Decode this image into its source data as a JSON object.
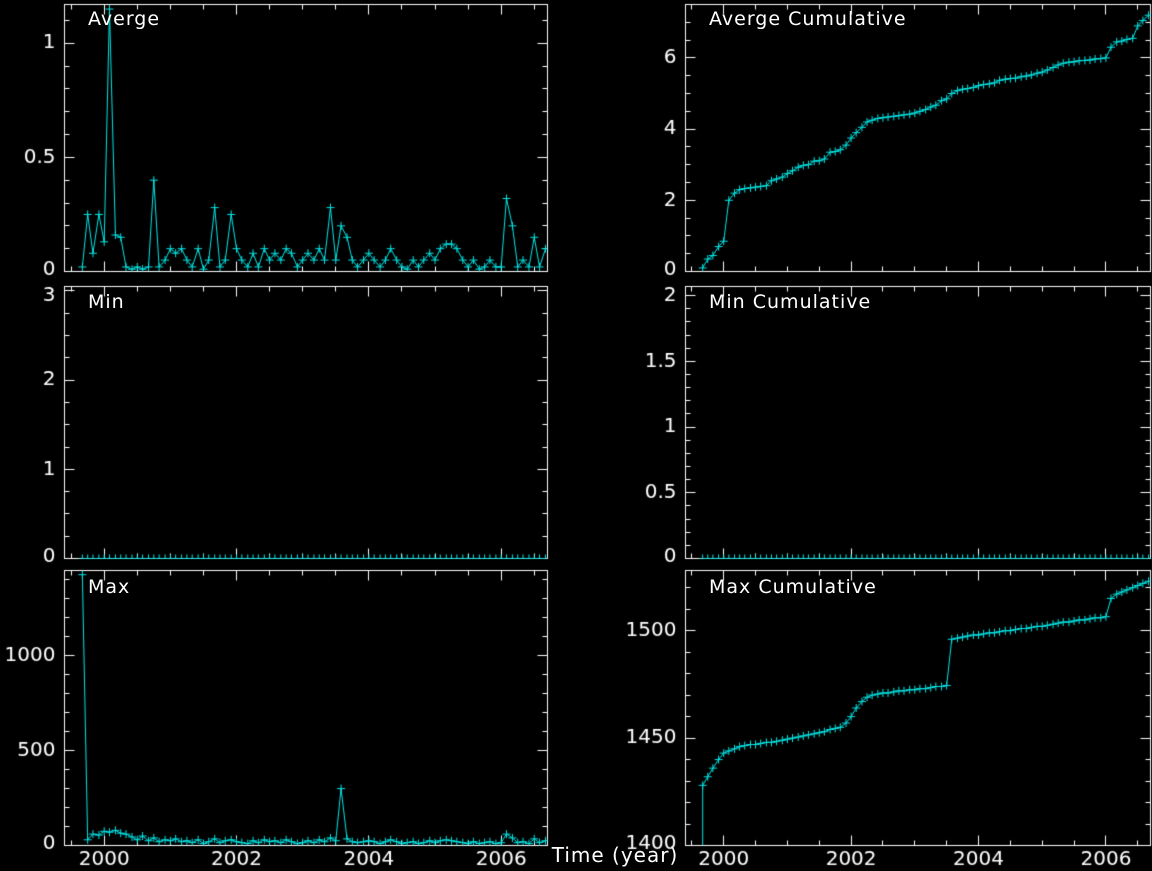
{
  "colors": {
    "background": "#000000",
    "axis": "#ffffff",
    "text": "#ffffff",
    "series": "#00e6e6"
  },
  "xlabel": "Time (year)",
  "chart_data": {
    "type": "line",
    "marker": "plus",
    "xlim": [
      1999.4,
      2006.7
    ],
    "x_ticks": {
      "values": [
        2000,
        2002,
        2004,
        2006
      ],
      "labels": [
        "2000",
        "2002",
        "2004",
        "2006"
      ]
    },
    "x_minor_step": 0.5,
    "x": [
      1999.67,
      1999.75,
      1999.83,
      1999.92,
      2000.0,
      2000.08,
      2000.17,
      2000.25,
      2000.33,
      2000.42,
      2000.5,
      2000.58,
      2000.67,
      2000.75,
      2000.83,
      2000.92,
      2001.0,
      2001.08,
      2001.17,
      2001.25,
      2001.33,
      2001.42,
      2001.5,
      2001.58,
      2001.67,
      2001.75,
      2001.83,
      2001.92,
      2002.0,
      2002.08,
      2002.17,
      2002.25,
      2002.33,
      2002.42,
      2002.5,
      2002.58,
      2002.67,
      2002.75,
      2002.83,
      2002.92,
      2003.0,
      2003.08,
      2003.17,
      2003.25,
      2003.33,
      2003.42,
      2003.5,
      2003.58,
      2003.67,
      2003.75,
      2003.83,
      2003.92,
      2004.0,
      2004.08,
      2004.17,
      2004.25,
      2004.33,
      2004.42,
      2004.5,
      2004.58,
      2004.67,
      2004.75,
      2004.83,
      2004.92,
      2005.0,
      2005.08,
      2005.17,
      2005.25,
      2005.33,
      2005.42,
      2005.5,
      2005.58,
      2005.67,
      2005.75,
      2005.83,
      2005.92,
      2006.0,
      2006.08,
      2006.17,
      2006.25,
      2006.33,
      2006.42,
      2006.5,
      2006.58,
      2006.67
    ],
    "panels": [
      {
        "id": "averge",
        "title": "Averge",
        "ylim": [
          0,
          1.17
        ],
        "yticks": [
          0,
          0.5,
          1
        ],
        "ytick_labels": [
          "0",
          "0.5",
          "1"
        ],
        "y_minor_step": 0.1,
        "show_x_labels": false,
        "lead_in_from_bottom": false,
        "values": [
          0.02,
          0.25,
          0.08,
          0.25,
          0.13,
          1.15,
          0.16,
          0.15,
          0.02,
          0.01,
          0.02,
          0.01,
          0.02,
          0.4,
          0.02,
          0.05,
          0.1,
          0.08,
          0.1,
          0.05,
          0.02,
          0.1,
          0.01,
          0.05,
          0.28,
          0.02,
          0.05,
          0.25,
          0.1,
          0.05,
          0.02,
          0.08,
          0.02,
          0.1,
          0.05,
          0.08,
          0.05,
          0.1,
          0.08,
          0.02,
          0.05,
          0.08,
          0.05,
          0.1,
          0.05,
          0.28,
          0.05,
          0.2,
          0.15,
          0.05,
          0.02,
          0.05,
          0.08,
          0.05,
          0.02,
          0.05,
          0.1,
          0.05,
          0.02,
          0.01,
          0.05,
          0.02,
          0.05,
          0.08,
          0.05,
          0.1,
          0.12,
          0.12,
          0.1,
          0.05,
          0.02,
          0.05,
          0.01,
          0.02,
          0.05,
          0.02,
          0.02,
          0.32,
          0.2,
          0.02,
          0.05,
          0.02,
          0.15,
          0.02,
          0.1
        ]
      },
      {
        "id": "averge-cumulative",
        "title": "Averge Cumulative",
        "ylim": [
          0,
          7.5
        ],
        "yticks": [
          0,
          2,
          4,
          6
        ],
        "ytick_labels": [
          "0",
          "2",
          "4",
          "6"
        ],
        "y_minor_step": 0.5,
        "show_x_labels": false,
        "lead_in_from_bottom": false,
        "values": [
          0.1,
          0.35,
          0.45,
          0.7,
          0.85,
          2.0,
          2.2,
          2.3,
          2.33,
          2.35,
          2.37,
          2.39,
          2.41,
          2.55,
          2.6,
          2.65,
          2.75,
          2.83,
          2.93,
          2.98,
          3.0,
          3.1,
          3.11,
          3.16,
          3.35,
          3.37,
          3.42,
          3.55,
          3.75,
          3.9,
          4.05,
          4.2,
          4.25,
          4.3,
          4.32,
          4.34,
          4.36,
          4.38,
          4.4,
          4.42,
          4.45,
          4.5,
          4.55,
          4.62,
          4.67,
          4.8,
          4.85,
          5.0,
          5.08,
          5.12,
          5.14,
          5.17,
          5.22,
          5.25,
          5.27,
          5.3,
          5.37,
          5.4,
          5.42,
          5.43,
          5.47,
          5.49,
          5.52,
          5.57,
          5.6,
          5.66,
          5.73,
          5.8,
          5.85,
          5.88,
          5.89,
          5.92,
          5.93,
          5.94,
          5.97,
          5.98,
          6.0,
          6.3,
          6.45,
          6.47,
          6.52,
          6.55,
          6.9,
          7.05,
          7.2
        ]
      },
      {
        "id": "min",
        "title": "Min",
        "ylim": [
          0,
          3.05
        ],
        "yticks": [
          0,
          1,
          2,
          3
        ],
        "ytick_labels": [
          "0",
          "1",
          "2",
          "3"
        ],
        "y_minor_step": 0.25,
        "show_x_labels": false,
        "lead_in_from_bottom": false,
        "values": [
          0,
          0,
          0,
          0,
          0,
          0,
          0,
          0,
          0,
          0,
          0,
          0,
          0,
          0,
          0,
          0,
          0,
          0,
          0,
          0,
          0,
          0,
          0,
          0,
          0,
          0,
          0,
          0,
          0,
          0,
          0,
          0,
          0,
          0,
          0,
          0,
          0,
          0,
          0,
          0,
          0,
          0,
          0,
          0,
          0,
          0,
          0,
          0,
          0,
          0,
          0,
          0,
          0,
          0,
          0,
          0,
          0,
          0,
          0,
          0,
          0,
          0,
          0,
          0,
          0,
          0,
          0,
          0,
          0,
          0,
          0,
          0,
          0,
          0,
          0,
          0,
          0,
          0,
          0,
          0,
          0,
          0,
          0,
          0,
          0
        ]
      },
      {
        "id": "min-cumulative",
        "title": "Min Cumulative",
        "ylim": [
          0,
          2.07
        ],
        "yticks": [
          0,
          0.5,
          1,
          1.5,
          2
        ],
        "ytick_labels": [
          "0",
          "0.5",
          "1",
          "1.5",
          "2"
        ],
        "y_minor_step": 0.1,
        "show_x_labels": false,
        "lead_in_from_bottom": false,
        "values": [
          0,
          0,
          0,
          0,
          0,
          0,
          0,
          0,
          0,
          0,
          0,
          0,
          0,
          0,
          0,
          0,
          0,
          0,
          0,
          0,
          0,
          0,
          0,
          0,
          0,
          0,
          0,
          0,
          0,
          0,
          0,
          0,
          0,
          0,
          0,
          0,
          0,
          0,
          0,
          0,
          0,
          0,
          0,
          0,
          0,
          0,
          0,
          0,
          0,
          0,
          0,
          0,
          0,
          0,
          0,
          0,
          0,
          0,
          0,
          0,
          0,
          0,
          0,
          0,
          0,
          0,
          0,
          0,
          0,
          0,
          0,
          0,
          0,
          0,
          0,
          0,
          0,
          0,
          0,
          0,
          0,
          0,
          0,
          0,
          0
        ]
      },
      {
        "id": "max",
        "title": "Max",
        "ylim": [
          0,
          1450
        ],
        "yticks": [
          0,
          500,
          1000
        ],
        "ytick_labels": [
          "0",
          "500",
          "1000"
        ],
        "y_minor_step": 100,
        "show_x_labels": true,
        "lead_in_from_bottom": false,
        "values": [
          1428,
          30,
          60,
          55,
          75,
          70,
          80,
          65,
          60,
          45,
          30,
          50,
          25,
          40,
          20,
          30,
          25,
          35,
          20,
          25,
          15,
          30,
          10,
          20,
          35,
          15,
          25,
          30,
          20,
          15,
          10,
          25,
          15,
          30,
          20,
          25,
          15,
          30,
          20,
          10,
          15,
          25,
          15,
          30,
          20,
          40,
          25,
          300,
          35,
          20,
          15,
          20,
          25,
          20,
          10,
          20,
          30,
          20,
          10,
          15,
          20,
          10,
          15,
          25,
          15,
          25,
          30,
          25,
          20,
          15,
          10,
          20,
          10,
          15,
          20,
          10,
          15,
          60,
          40,
          15,
          20,
          10,
          35,
          15,
          25
        ]
      },
      {
        "id": "max-cumulative",
        "title": "Max Cumulative",
        "ylim": [
          1400,
          1528
        ],
        "yticks": [
          1400,
          1450,
          1500
        ],
        "ytick_labels": [
          "1400",
          "1450",
          "1500"
        ],
        "y_minor_step": 10,
        "show_x_labels": true,
        "lead_in_from_bottom": true,
        "values": [
          1428,
          1432,
          1436,
          1440,
          1443,
          1444,
          1445,
          1446,
          1446.5,
          1447,
          1447,
          1447.5,
          1448,
          1448,
          1448.5,
          1449,
          1449.5,
          1450,
          1450.5,
          1451,
          1451.5,
          1452,
          1452.5,
          1453,
          1454,
          1454.5,
          1455,
          1457,
          1460,
          1464,
          1467,
          1469,
          1470,
          1470.5,
          1471,
          1471,
          1471.5,
          1472,
          1472,
          1472.5,
          1472.5,
          1473,
          1473,
          1473.5,
          1474,
          1474,
          1474.5,
          1496,
          1496.5,
          1497,
          1497.5,
          1498,
          1498,
          1498.5,
          1499,
          1499,
          1499.5,
          1500,
          1500,
          1500.5,
          1501,
          1501,
          1501.5,
          1502,
          1502,
          1502.5,
          1503,
          1503.5,
          1504,
          1504,
          1504.5,
          1505,
          1505,
          1505.5,
          1506,
          1506,
          1506.5,
          1515,
          1517,
          1518,
          1519,
          1520,
          1521,
          1522,
          1523
        ]
      }
    ]
  }
}
